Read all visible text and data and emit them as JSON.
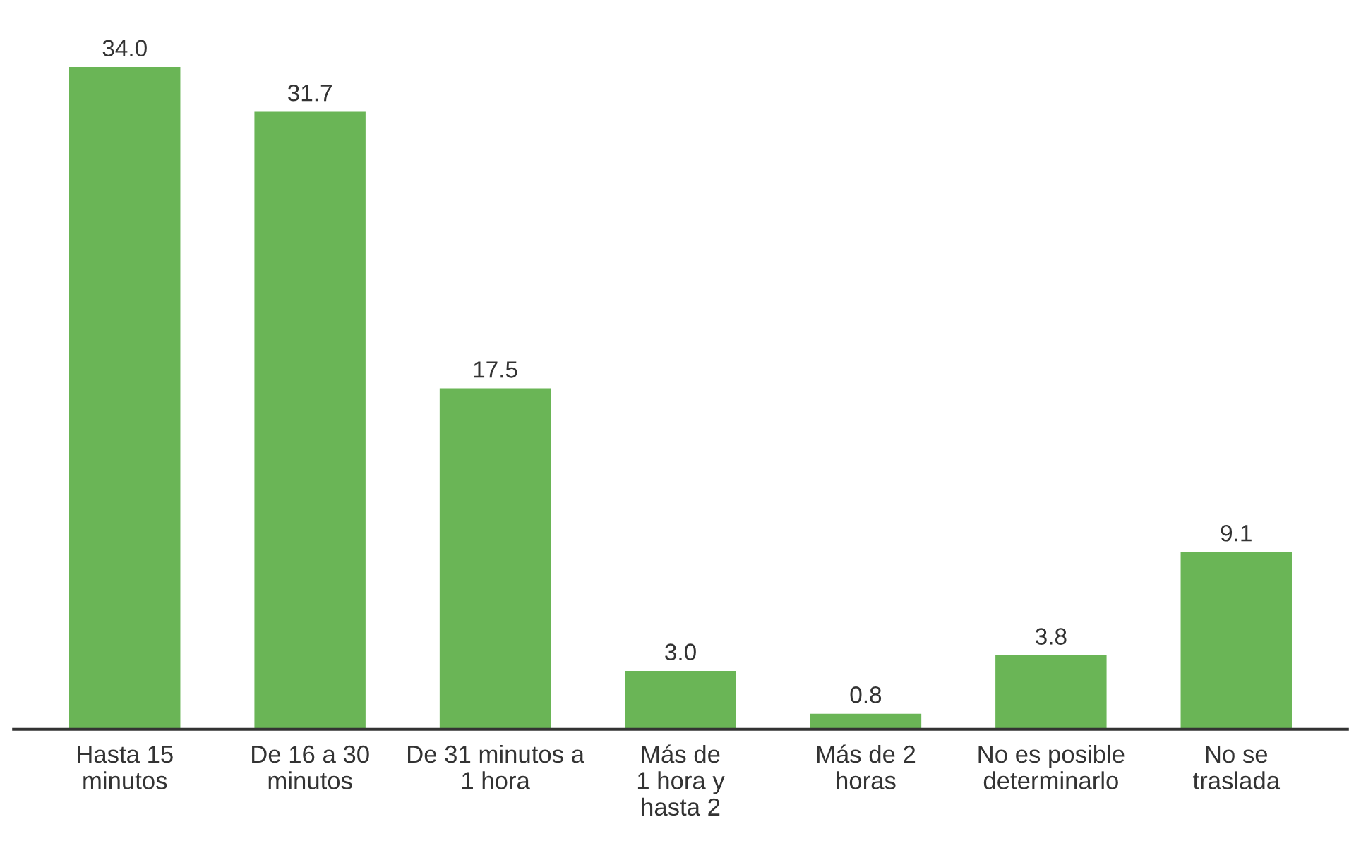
{
  "chart_data": {
    "type": "bar",
    "categories": [
      "Hasta 15\nminutos",
      "De 16 a 30\nminutos",
      "De 31 minutos a\n1 hora",
      "Más de\n1 hora y\nhasta 2",
      "Más de 2\nhoras",
      "No es posible\ndeterminarlo",
      "No se\ntraslada"
    ],
    "values": [
      34.0,
      31.7,
      17.5,
      3.0,
      0.8,
      3.8,
      9.1
    ],
    "value_labels": [
      "34.0",
      "31.7",
      "17.5",
      "3.0",
      "0.8",
      "3.8",
      "9.1"
    ],
    "color": "#6ab556",
    "grid": false,
    "legend": false
  }
}
